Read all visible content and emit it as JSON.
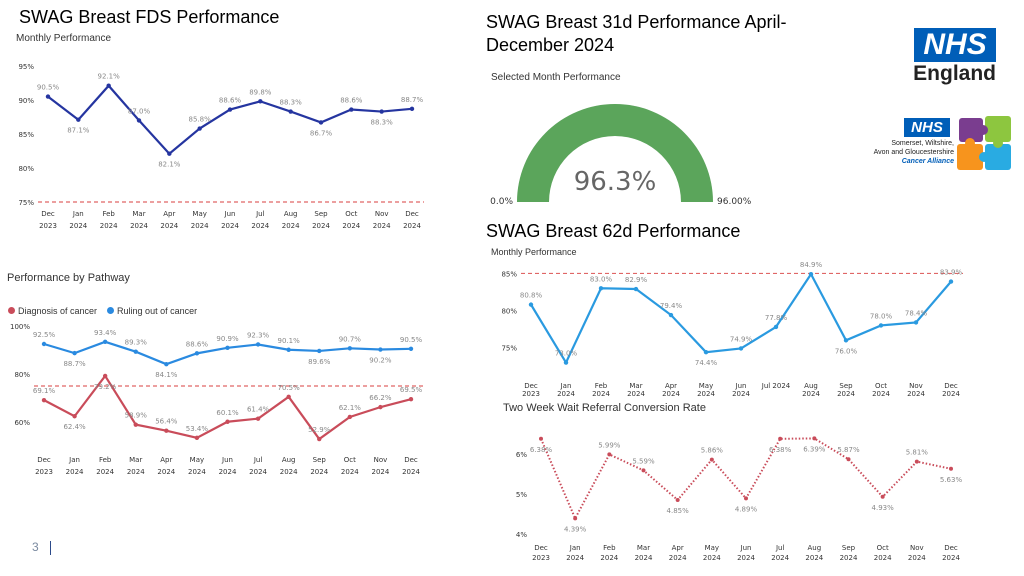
{
  "slide": {
    "title_fds": "SWAG Breast FDS Performance",
    "title_31d": "SWAG Breast 31d Performance April-December 2024",
    "title_62d": "SWAG Breast 62d Performance",
    "page_number": "3"
  },
  "logos": {
    "nhs_mark": "NHS",
    "nhs_england": "England",
    "alliance_mark": "NHS",
    "alliance_line1": "Somerset, Wiltshire,",
    "alliance_line2": "Avon and Gloucestershire",
    "alliance_line3": "Cancer Alliance",
    "nhs_blue": "#005EB8",
    "puzzle_colors": [
      "#7A3D8F",
      "#8DC63F",
      "#F7941D",
      "#29ABE2"
    ]
  },
  "chart_data": [
    {
      "id": "fds",
      "type": "line",
      "title": "Monthly Performance",
      "categories": [
        [
          "Dec",
          "2023"
        ],
        [
          "Jan",
          "2024"
        ],
        [
          "Feb",
          "2024"
        ],
        [
          "Mar",
          "2024"
        ],
        [
          "Apr",
          "2024"
        ],
        [
          "May",
          "2024"
        ],
        [
          "Jun",
          "2024"
        ],
        [
          "Jul",
          "2024"
        ],
        [
          "Aug",
          "2024"
        ],
        [
          "Sep",
          "2024"
        ],
        [
          "Oct",
          "2024"
        ],
        [
          "Nov",
          "2024"
        ],
        [
          "Dec",
          "2024"
        ]
      ],
      "yticks": [
        "75%",
        "80%",
        "85%",
        "90%",
        "95%"
      ],
      "ylim": [
        75,
        95
      ],
      "target": 75,
      "series": [
        {
          "name": "FDS",
          "color": "#2535A0",
          "values": [
            90.5,
            87.1,
            92.1,
            87.0,
            82.1,
            85.8,
            88.6,
            89.8,
            88.3,
            86.7,
            88.6,
            88.3,
            88.7
          ],
          "labels": [
            "90.5%",
            "87.1%",
            "92.1%",
            "87.0%",
            "82.1%",
            "85.8%",
            "88.6%",
            "89.8%",
            "88.3%",
            "86.7%",
            "88.6%",
            "88.3%",
            "88.7%"
          ],
          "label_pos": [
            "above",
            "below",
            "above",
            "above",
            "below",
            "above",
            "above",
            "above",
            "above",
            "below",
            "above",
            "below",
            "above"
          ]
        }
      ]
    },
    {
      "id": "pathway",
      "type": "line",
      "title": "Performance by Pathway",
      "legend": [
        {
          "name": "Diagnosis of cancer",
          "color": "#C94C5A"
        },
        {
          "name": "Ruling out of cancer",
          "color": "#2A8AE0"
        }
      ],
      "categories": [
        [
          "Dec",
          "2023"
        ],
        [
          "Jan",
          "2024"
        ],
        [
          "Feb",
          "2024"
        ],
        [
          "Mar",
          "2024"
        ],
        [
          "Apr",
          "2024"
        ],
        [
          "May",
          "2024"
        ],
        [
          "Jun",
          "2024"
        ],
        [
          "Jul",
          "2024"
        ],
        [
          "Aug",
          "2024"
        ],
        [
          "Sep",
          "2024"
        ],
        [
          "Oct",
          "2024"
        ],
        [
          "Nov",
          "2024"
        ],
        [
          "Dec",
          "2024"
        ]
      ],
      "yticks": [
        "60%",
        "80%",
        "100%"
      ],
      "ylim": [
        50,
        100
      ],
      "target": 75,
      "series": [
        {
          "name": "Diagnosis of cancer",
          "color": "#C94C5A",
          "values": [
            69.1,
            62.4,
            79.2,
            58.9,
            56.4,
            53.4,
            60.1,
            61.4,
            70.5,
            52.9,
            62.1,
            66.2,
            69.5
          ],
          "labels": [
            "69.1%",
            "62.4%",
            "79.2%",
            "58.9%",
            "56.4%",
            "53.4%",
            "60.1%",
            "61.4%",
            "70.5%",
            "52.9%",
            "62.1%",
            "66.2%",
            "69.5%"
          ],
          "label_pos": [
            "above",
            "below",
            "below",
            "above",
            "above",
            "above",
            "above",
            "above",
            "above",
            "above",
            "above",
            "above",
            "above"
          ]
        },
        {
          "name": "Ruling out of cancer",
          "color": "#2A8AE0",
          "values": [
            92.5,
            88.7,
            93.4,
            89.3,
            84.1,
            88.6,
            90.9,
            92.3,
            90.1,
            89.6,
            90.7,
            90.2,
            90.5
          ],
          "labels": [
            "92.5%",
            "88.7%",
            "93.4%",
            "89.3%",
            "84.1%",
            "88.6%",
            "90.9%",
            "92.3%",
            "90.1%",
            "89.6%",
            "90.7%",
            "90.2%",
            "90.5%"
          ],
          "label_pos": [
            "above",
            "below",
            "above",
            "above",
            "below",
            "above",
            "above",
            "above",
            "above",
            "below",
            "above",
            "below",
            "above"
          ]
        }
      ]
    },
    {
      "id": "gauge31",
      "type": "gauge",
      "title": "Selected Month Performance",
      "value": 96.3,
      "value_label": "96.3%",
      "min_label": "0.0%",
      "max_label": "96.00%",
      "fill_fraction": 1.0,
      "color": "#5BA55B"
    },
    {
      "id": "d62",
      "type": "line",
      "title": "Monthly Performance",
      "categories": [
        [
          "Dec",
          "2023"
        ],
        [
          "Jan",
          "2024"
        ],
        [
          "Feb",
          "2024"
        ],
        [
          "Mar",
          "2024"
        ],
        [
          "Apr",
          "2024"
        ],
        [
          "May",
          "2024"
        ],
        [
          "Jun",
          "2024"
        ],
        [
          "Jul 2024",
          ""
        ],
        [
          "Aug",
          "2024"
        ],
        [
          "Sep",
          "2024"
        ],
        [
          "Oct",
          "2024"
        ],
        [
          "Nov",
          "2024"
        ],
        [
          "Dec",
          "2024"
        ]
      ],
      "yticks": [
        "75%",
        "80%",
        "85%"
      ],
      "ylim": [
        72,
        86
      ],
      "target": 85,
      "series": [
        {
          "name": "62d",
          "color": "#2A9AE0",
          "values": [
            80.8,
            73.0,
            83.0,
            82.9,
            79.4,
            74.4,
            74.9,
            77.8,
            84.9,
            76.0,
            78.0,
            78.4,
            83.9
          ],
          "labels": [
            "80.8%",
            "73.0%",
            "83.0%",
            "82.9%",
            "79.4%",
            "74.4%",
            "74.9%",
            "77.8%",
            "84.9%",
            "76.0%",
            "78.0%",
            "78.4%",
            "83.9%"
          ],
          "label_pos": [
            "above",
            "above",
            "above",
            "above",
            "above",
            "below",
            "above",
            "above",
            "above",
            "below",
            "above",
            "above",
            "above"
          ]
        }
      ]
    },
    {
      "id": "twr",
      "type": "line",
      "title": "Two Week Wait Referral Conversion Rate",
      "categories": [
        [
          "Dec",
          "2023"
        ],
        [
          "Jan",
          "2024"
        ],
        [
          "Feb",
          "2024"
        ],
        [
          "Mar",
          "2024"
        ],
        [
          "Apr",
          "2024"
        ],
        [
          "May",
          "2024"
        ],
        [
          "Jun",
          "2024"
        ],
        [
          "Jul",
          "2024"
        ],
        [
          "Aug",
          "2024"
        ],
        [
          "Sep",
          "2024"
        ],
        [
          "Oct",
          "2024"
        ],
        [
          "Nov",
          "2024"
        ],
        [
          "Dec",
          "2024"
        ]
      ],
      "yticks": [
        "4%",
        "5%",
        "6%"
      ],
      "ylim": [
        4,
        6.6
      ],
      "series": [
        {
          "name": "Conversion",
          "color": "#C94C5A",
          "dotted": true,
          "values": [
            6.38,
            4.39,
            5.99,
            5.59,
            4.85,
            5.86,
            4.89,
            6.38,
            6.39,
            5.87,
            4.93,
            5.81,
            5.63
          ],
          "labels": [
            "6.38%",
            "4.39%",
            "5.99%",
            "5.59%",
            "4.85%",
            "5.86%",
            "4.89%",
            "6.38%",
            "6.39%",
            "5.87%",
            "4.93%",
            "5.81%",
            "5.63%"
          ],
          "label_pos": [
            "below",
            "below",
            "above",
            "above",
            "below",
            "above",
            "below",
            "below",
            "below",
            "above",
            "below",
            "above",
            "below"
          ]
        }
      ]
    }
  ]
}
